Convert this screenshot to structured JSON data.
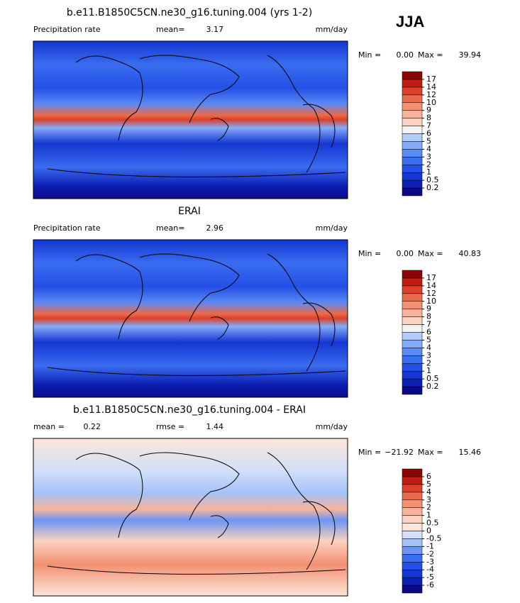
{
  "season": "JJA",
  "panels": [
    {
      "title": "b.e11.B1850C5CN.ne30_g16.tuning.004 (yrs 1-2)",
      "left_label": "Precipitation rate",
      "stats": [
        {
          "label": "mean=",
          "value": "3.17"
        }
      ],
      "units": "mm/day",
      "min_label": "Min =",
      "min": "0.00",
      "max_label": "Max =",
      "max": "39.94",
      "levels": [
        0.2,
        0.5,
        1,
        2,
        3,
        4,
        5,
        6,
        7,
        8,
        9,
        10,
        12,
        14,
        17
      ],
      "colors": [
        "#0a0a8c",
        "#0c1fb4",
        "#1436d2",
        "#2450e6",
        "#3a6cf0",
        "#5b8af5",
        "#86abf8",
        "#b4cdf8",
        "#f2f2f2",
        "#fbd3c0",
        "#f8b49a",
        "#f39072",
        "#eb6a4a",
        "#dc4028",
        "#c21c10",
        "#8c0606"
      ]
    },
    {
      "title": "ERAI",
      "left_label": "Precipitation rate",
      "stats": [
        {
          "label": "mean=",
          "value": "2.96"
        }
      ],
      "units": "mm/day",
      "min_label": "Min =",
      "min": "0.00",
      "max_label": "Max =",
      "max": "40.83",
      "levels": [
        0.2,
        0.5,
        1,
        2,
        3,
        4,
        5,
        6,
        7,
        8,
        9,
        10,
        12,
        14,
        17
      ],
      "colors": [
        "#0a0a8c",
        "#0c1fb4",
        "#1436d2",
        "#2450e6",
        "#3a6cf0",
        "#5b8af5",
        "#86abf8",
        "#b4cdf8",
        "#f2f2f2",
        "#fbd3c0",
        "#f8b49a",
        "#f39072",
        "#eb6a4a",
        "#dc4028",
        "#c21c10",
        "#8c0606"
      ]
    },
    {
      "title": "b.e11.B1850C5CN.ne30_g16.tuning.004 - ERAI",
      "stats": [
        {
          "label": "mean =",
          "value": "0.22"
        },
        {
          "label": "rmse =",
          "value": "1.44"
        }
      ],
      "units": "mm/day",
      "min_label": "Min =",
      "min": "−21.92",
      "max_label": "Max =",
      "max": "15.46",
      "levels": [
        -6,
        -5,
        -4,
        -3,
        -2,
        -1,
        -0.5,
        0,
        0.5,
        1,
        2,
        3,
        4,
        5,
        6
      ],
      "colors": [
        "#0a0a8c",
        "#0c1fb4",
        "#1436d2",
        "#2450e6",
        "#3a6cf0",
        "#6c95f5",
        "#a4c2f8",
        "#d2e0f8",
        "#fde6d8",
        "#fbd3c0",
        "#f8b49a",
        "#f39072",
        "#eb6a4a",
        "#dc4028",
        "#c21c10",
        "#8c0606"
      ]
    }
  ]
}
